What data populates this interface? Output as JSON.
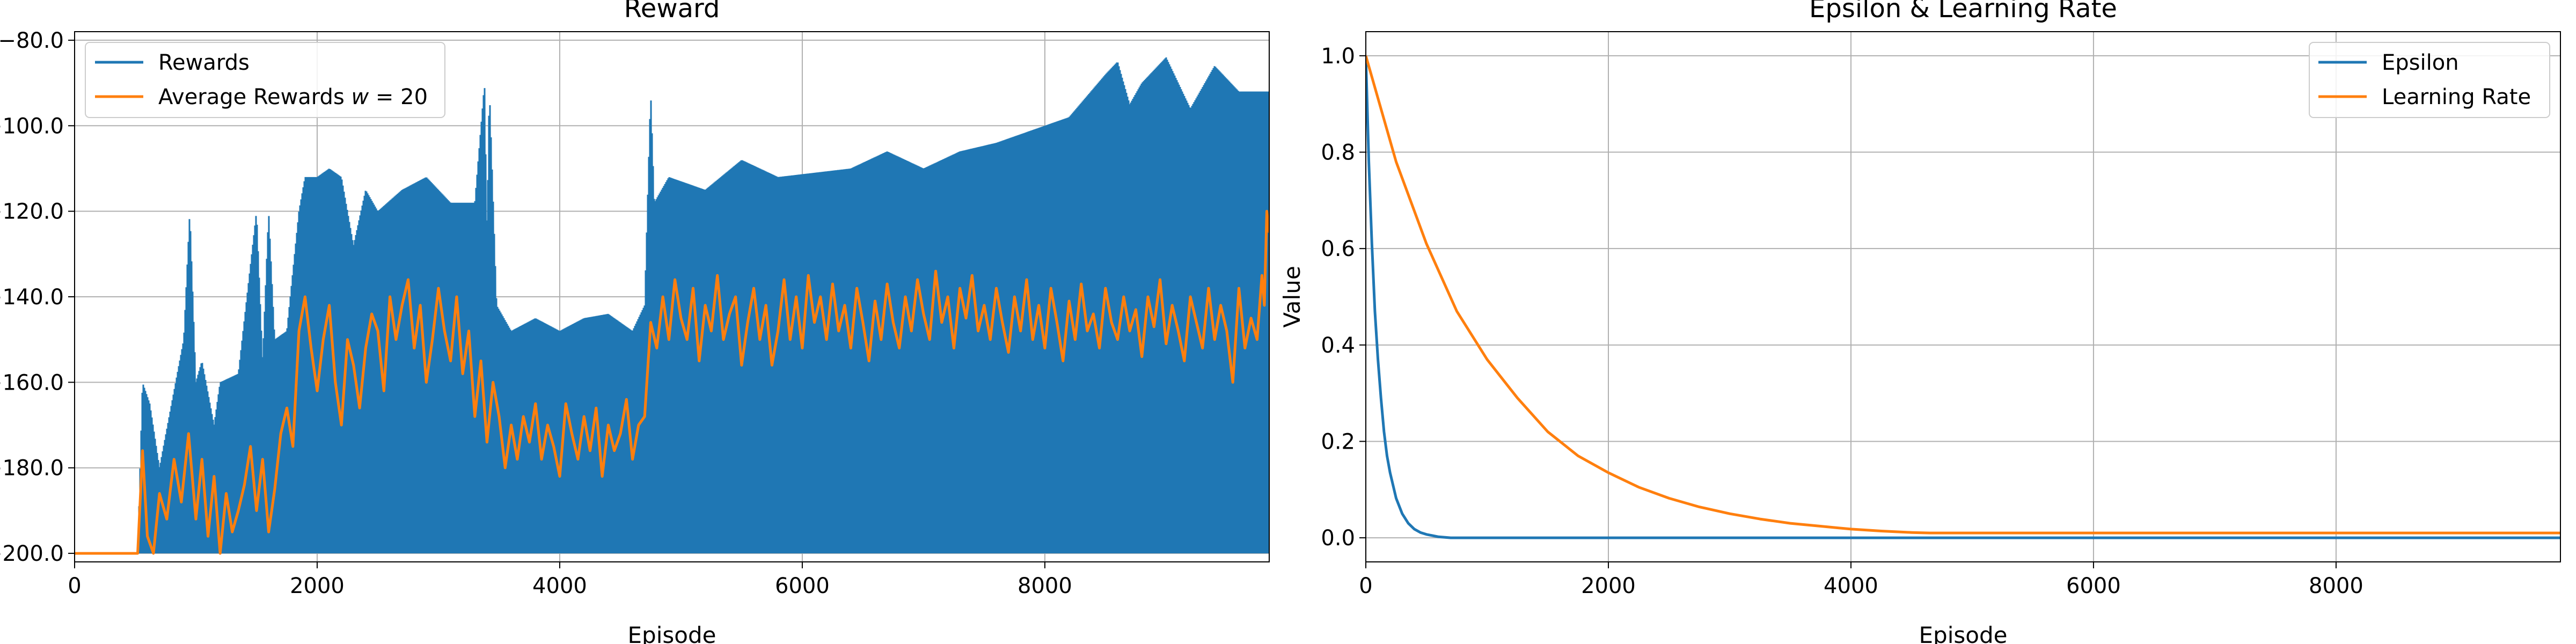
{
  "chart_data": [
    {
      "type": "line",
      "title": "Reward",
      "xlabel": "Episode",
      "ylabel": "",
      "xlim": [
        0,
        9850
      ],
      "ylim": [
        -202,
        -78
      ],
      "xticks": [
        0,
        2000,
        4000,
        6000,
        8000
      ],
      "yticks": [
        -200,
        -180,
        -160,
        -140,
        -120,
        -100,
        -80
      ],
      "grid": true,
      "legend_position": "top-left",
      "series": [
        {
          "name": "Rewards",
          "color": "#1f77b4",
          "style": "noisy band: each episode reward oscillates between the floor and the upper envelope",
          "floor": -200,
          "x": [
            0,
            520,
            560,
            620,
            700,
            800,
            900,
            950,
            1000,
            1050,
            1150,
            1200,
            1350,
            1500,
            1550,
            1600,
            1650,
            1750,
            1850,
            1900,
            2000,
            2100,
            2200,
            2300,
            2400,
            2500,
            2700,
            2900,
            3100,
            3300,
            3380,
            3400,
            3420,
            3480,
            3500,
            3600,
            3800,
            4000,
            4200,
            4400,
            4600,
            4700,
            4750,
            4780,
            4900,
            5200,
            5500,
            5800,
            6100,
            6400,
            6700,
            7000,
            7300,
            7600,
            7900,
            8200,
            8500,
            8600,
            8700,
            8800,
            9000,
            9200,
            9400,
            9600,
            9700,
            9800
          ],
          "upper": [
            -200,
            -200,
            -160,
            -165,
            -180,
            -165,
            -150,
            -120,
            -160,
            -155,
            -170,
            -160,
            -158,
            -120,
            -155,
            -120,
            -150,
            -148,
            -120,
            -112,
            -112,
            -110,
            -112,
            -128,
            -115,
            -120,
            -115,
            -112,
            -118,
            -118,
            -90,
            -125,
            -91,
            -142,
            -143,
            -148,
            -145,
            -148,
            -145,
            -144,
            -148,
            -142,
            -92,
            -118,
            -112,
            -115,
            -108,
            -112,
            -111,
            -110,
            -106,
            -110,
            -106,
            -104,
            -101,
            -98,
            -88,
            -85,
            -95,
            -90,
            -84,
            -96,
            -86,
            -92,
            -92,
            -92
          ]
        },
        {
          "name": "Average Rewards $w = 20$",
          "color": "#ff7f0e",
          "x": [
            0,
            520,
            560,
            600,
            650,
            700,
            760,
            820,
            880,
            940,
            1000,
            1050,
            1100,
            1150,
            1200,
            1250,
            1300,
            1350,
            1400,
            1450,
            1500,
            1550,
            1600,
            1650,
            1700,
            1750,
            1800,
            1850,
            1900,
            1950,
            2000,
            2050,
            2100,
            2150,
            2200,
            2250,
            2300,
            2350,
            2400,
            2450,
            2500,
            2550,
            2600,
            2650,
            2700,
            2750,
            2800,
            2850,
            2900,
            2950,
            3000,
            3050,
            3100,
            3150,
            3200,
            3250,
            3300,
            3350,
            3400,
            3450,
            3500,
            3550,
            3600,
            3650,
            3700,
            3750,
            3800,
            3850,
            3900,
            3950,
            4000,
            4050,
            4100,
            4150,
            4200,
            4250,
            4300,
            4350,
            4400,
            4450,
            4500,
            4550,
            4600,
            4650,
            4700,
            4750,
            4800,
            4850,
            4900,
            4950,
            5000,
            5050,
            5100,
            5150,
            5200,
            5250,
            5300,
            5350,
            5400,
            5450,
            5500,
            5550,
            5600,
            5650,
            5700,
            5750,
            5800,
            5850,
            5900,
            5950,
            6000,
            6050,
            6100,
            6150,
            6200,
            6250,
            6300,
            6350,
            6400,
            6450,
            6500,
            6550,
            6600,
            6650,
            6700,
            6750,
            6800,
            6850,
            6900,
            6950,
            7000,
            7050,
            7100,
            7150,
            7200,
            7250,
            7300,
            7350,
            7400,
            7450,
            7500,
            7550,
            7600,
            7650,
            7700,
            7750,
            7800,
            7850,
            7900,
            7950,
            8000,
            8050,
            8100,
            8150,
            8200,
            8250,
            8300,
            8350,
            8400,
            8450,
            8500,
            8550,
            8600,
            8650,
            8700,
            8750,
            8800,
            8850,
            8900,
            8950,
            9000,
            9050,
            9100,
            9150,
            9200,
            9250,
            9300,
            9350,
            9400,
            9450,
            9500,
            9550,
            9600,
            9650,
            9700,
            9750,
            9790,
            9810,
            9830,
            9850
          ],
          "y": [
            -200,
            -200,
            -176,
            -196,
            -200,
            -186,
            -192,
            -178,
            -188,
            -172,
            -192,
            -178,
            -196,
            -182,
            -200,
            -186,
            -195,
            -190,
            -184,
            -175,
            -190,
            -178,
            -195,
            -185,
            -172,
            -166,
            -175,
            -148,
            -140,
            -152,
            -162,
            -150,
            -142,
            -160,
            -170,
            -150,
            -156,
            -166,
            -152,
            -144,
            -148,
            -162,
            -140,
            -150,
            -142,
            -136,
            -152,
            -142,
            -160,
            -150,
            -138,
            -148,
            -155,
            -140,
            -158,
            -148,
            -168,
            -155,
            -174,
            -160,
            -168,
            -180,
            -170,
            -178,
            -168,
            -174,
            -165,
            -178,
            -170,
            -175,
            -182,
            -165,
            -172,
            -178,
            -168,
            -176,
            -166,
            -182,
            -170,
            -176,
            -172,
            -164,
            -178,
            -170,
            -168,
            -146,
            -152,
            -140,
            -150,
            -136,
            -145,
            -150,
            -138,
            -155,
            -142,
            -148,
            -135,
            -150,
            -144,
            -140,
            -156,
            -146,
            -138,
            -150,
            -142,
            -156,
            -148,
            -136,
            -150,
            -140,
            -152,
            -135,
            -146,
            -140,
            -150,
            -137,
            -148,
            -142,
            -152,
            -138,
            -146,
            -155,
            -141,
            -150,
            -137,
            -146,
            -152,
            -140,
            -148,
            -136,
            -144,
            -150,
            -134,
            -146,
            -140,
            -152,
            -138,
            -145,
            -135,
            -148,
            -142,
            -150,
            -138,
            -146,
            -153,
            -140,
            -148,
            -136,
            -150,
            -142,
            -152,
            -138,
            -146,
            -155,
            -141,
            -150,
            -137,
            -148,
            -144,
            -152,
            -138,
            -146,
            -150,
            -140,
            -148,
            -143,
            -154,
            -140,
            -147,
            -136,
            -151,
            -142,
            -148,
            -155,
            -140,
            -146,
            -152,
            -138,
            -150,
            -142,
            -148,
            -160,
            -138,
            -152,
            -145,
            -150,
            -135,
            -142,
            -120,
            -125
          ]
        }
      ]
    },
    {
      "type": "line",
      "title": "Epsilon & Learning Rate",
      "xlabel": "Episode",
      "ylabel": "Value",
      "xlim": [
        0,
        9850
      ],
      "ylim": [
        -0.05,
        1.05
      ],
      "xticks": [
        0,
        2000,
        4000,
        6000,
        8000
      ],
      "yticks": [
        0.0,
        0.2,
        0.4,
        0.6,
        0.8,
        1.0
      ],
      "grid": true,
      "legend_position": "top-right",
      "series": [
        {
          "name": "Epsilon",
          "color": "#1f77b4",
          "x": [
            0,
            25,
            50,
            75,
            100,
            125,
            150,
            175,
            200,
            250,
            300,
            350,
            400,
            450,
            500,
            600,
            700,
            800,
            9850
          ],
          "y": [
            1.0,
            0.78,
            0.61,
            0.47,
            0.37,
            0.29,
            0.22,
            0.17,
            0.135,
            0.082,
            0.05,
            0.03,
            0.018,
            0.011,
            0.007,
            0.002,
            0.0,
            0.0,
            0.0
          ]
        },
        {
          "name": "Learning Rate",
          "color": "#ff7f0e",
          "x": [
            0,
            250,
            500,
            750,
            1000,
            1250,
            1500,
            1750,
            2000,
            2250,
            2500,
            2750,
            3000,
            3250,
            3500,
            3750,
            4000,
            4250,
            4500,
            4650,
            5000,
            6000,
            7000,
            8000,
            9000,
            9850
          ],
          "y": [
            1.0,
            0.78,
            0.61,
            0.47,
            0.37,
            0.29,
            0.22,
            0.17,
            0.135,
            0.105,
            0.082,
            0.064,
            0.05,
            0.039,
            0.03,
            0.024,
            0.018,
            0.014,
            0.011,
            0.01,
            0.01,
            0.01,
            0.01,
            0.01,
            0.01,
            0.01
          ]
        }
      ]
    }
  ]
}
